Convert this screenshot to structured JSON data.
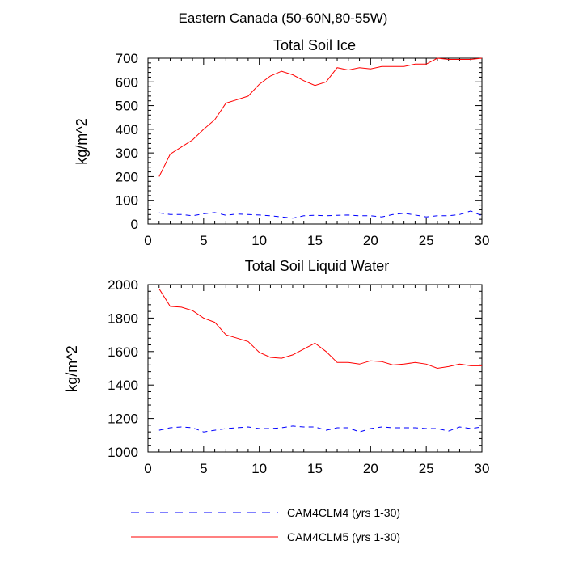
{
  "figure": {
    "title": "Eastern Canada (50-60N,80-55W)"
  },
  "legend": [
    {
      "name": "CAM4CLM4 (yrs 1-30)",
      "color": "#0000ff",
      "dash": "dashed"
    },
    {
      "name": "CAM4CLM5 (yrs 1-30)",
      "color": "#ff0000",
      "dash": "solid"
    }
  ],
  "chart_data": [
    {
      "type": "line",
      "title": "Total Soil Ice",
      "xlabel": "",
      "ylabel": "kg/m^2",
      "xlim": [
        0,
        30
      ],
      "ylim": [
        0,
        700
      ],
      "xticks": [
        0,
        5,
        10,
        15,
        20,
        25,
        30
      ],
      "yticks": [
        0,
        100,
        200,
        300,
        400,
        500,
        600,
        700
      ],
      "x": [
        1,
        2,
        3,
        4,
        5,
        6,
        7,
        8,
        9,
        10,
        11,
        12,
        13,
        14,
        15,
        16,
        17,
        18,
        19,
        20,
        21,
        22,
        23,
        24,
        25,
        26,
        27,
        28,
        29,
        30
      ],
      "series": [
        {
          "name": "CAM4CLM4 (yrs 1-30)",
          "color": "#0000ff",
          "dash": "dashed",
          "values": [
            47,
            40,
            40,
            35,
            43,
            48,
            37,
            42,
            40,
            38,
            35,
            30,
            25,
            35,
            37,
            35,
            37,
            38,
            35,
            35,
            30,
            40,
            45,
            38,
            30,
            35,
            35,
            40,
            55,
            35
          ]
        },
        {
          "name": "CAM4CLM5 (yrs 1-30)",
          "color": "#ff0000",
          "dash": "solid",
          "values": [
            200,
            295,
            325,
            355,
            400,
            440,
            510,
            525,
            540,
            590,
            625,
            645,
            630,
            605,
            585,
            600,
            660,
            650,
            660,
            655,
            665,
            665,
            665,
            675,
            675,
            700,
            695,
            695,
            695,
            700
          ]
        }
      ]
    },
    {
      "type": "line",
      "title": "Total Soil Liquid Water",
      "xlabel": "",
      "ylabel": "kg/m^2",
      "xlim": [
        0,
        30
      ],
      "ylim": [
        1000,
        2000
      ],
      "xticks": [
        0,
        5,
        10,
        15,
        20,
        25,
        30
      ],
      "yticks": [
        1000,
        1200,
        1400,
        1600,
        1800,
        2000
      ],
      "x": [
        1,
        2,
        3,
        4,
        5,
        6,
        7,
        8,
        9,
        10,
        11,
        12,
        13,
        14,
        15,
        16,
        17,
        18,
        19,
        20,
        21,
        22,
        23,
        24,
        25,
        26,
        27,
        28,
        29,
        30
      ],
      "series": [
        {
          "name": "CAM4CLM4 (yrs 1-30)",
          "color": "#0000ff",
          "dash": "dashed",
          "values": [
            1130,
            1145,
            1150,
            1145,
            1120,
            1130,
            1140,
            1145,
            1150,
            1140,
            1140,
            1145,
            1155,
            1150,
            1150,
            1130,
            1145,
            1145,
            1120,
            1140,
            1150,
            1145,
            1145,
            1145,
            1140,
            1140,
            1125,
            1150,
            1140,
            1150
          ]
        },
        {
          "name": "CAM4CLM5 (yrs 1-30)",
          "color": "#ff0000",
          "dash": "solid",
          "values": [
            1975,
            1870,
            1865,
            1845,
            1800,
            1775,
            1700,
            1680,
            1660,
            1595,
            1565,
            1560,
            1580,
            1615,
            1650,
            1600,
            1535,
            1535,
            1525,
            1545,
            1540,
            1520,
            1525,
            1535,
            1525,
            1500,
            1510,
            1525,
            1515,
            1515
          ]
        }
      ]
    }
  ]
}
